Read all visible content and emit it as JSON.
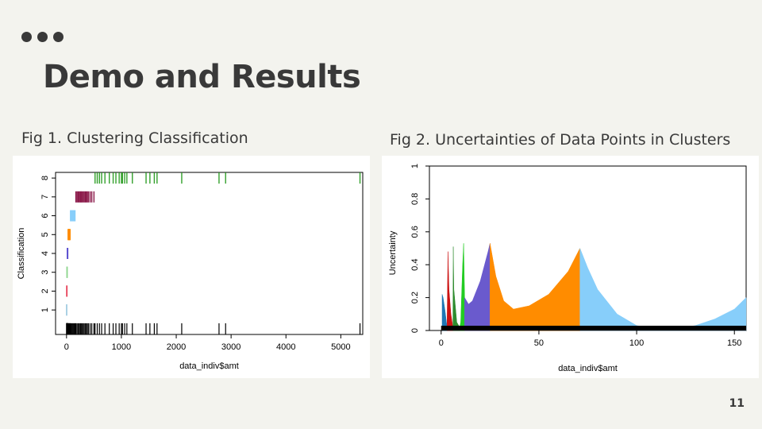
{
  "slide": {
    "title": "Demo and Results",
    "fig1_caption": "Fig 1. Clustering Classification",
    "fig2_caption": "Fig 2. Uncertainties of Data Points in Clusters",
    "page_number": "11"
  },
  "chart_data": [
    {
      "type": "scatter",
      "xlabel": "data_indiv$amt",
      "ylabel": "Classification",
      "xlim": [
        -200,
        5400
      ],
      "ylim": [
        -0.3,
        8.3
      ],
      "x_ticks": [
        0,
        1000,
        2000,
        3000,
        4000,
        5000
      ],
      "y_ticks": [
        1,
        2,
        3,
        4,
        5,
        6,
        7,
        8
      ],
      "mark": "vertical tick per observation",
      "all_data_row_y": 0,
      "series": [
        {
          "class": 1,
          "color": "#a6cee3",
          "x": [
            1,
            2,
            3,
            4
          ]
        },
        {
          "class": 2,
          "color": "#e5304a",
          "x": [
            4,
            5,
            6,
            7
          ]
        },
        {
          "class": 3,
          "color": "#8fd68f",
          "x": [
            8,
            9,
            10,
            12
          ]
        },
        {
          "class": 4,
          "color": "#5b4fcf",
          "x": [
            14,
            17,
            20,
            23
          ]
        },
        {
          "class": 5,
          "color": "#ff8c00",
          "x": [
            28,
            35,
            42,
            50,
            58,
            65
          ]
        },
        {
          "class": 6,
          "color": "#87cefa",
          "x": [
            72,
            85,
            100,
            115,
            130,
            145,
            155
          ]
        },
        {
          "class": 7,
          "color": "#8b1a4a",
          "x": [
            170,
            190,
            210,
            230,
            250,
            265,
            280,
            300,
            320,
            340,
            360,
            380,
            400,
            430,
            460,
            500
          ]
        },
        {
          "class": 8,
          "color": "#33a02c",
          "x": [
            520,
            560,
            600,
            640,
            700,
            780,
            850,
            900,
            960,
            1000,
            1020,
            1060,
            1100,
            1200,
            1450,
            1520,
            1600,
            1650,
            2100,
            2780,
            2900,
            5350
          ]
        }
      ]
    },
    {
      "type": "area",
      "xlabel": "data_indiv$amt",
      "ylabel": "Uncertainty",
      "xlim": [
        -6,
        156
      ],
      "ylim": [
        0,
        1.0
      ],
      "x_ticks": [
        0,
        50,
        100,
        150
      ],
      "y_ticks": [
        0.0,
        0.2,
        0.4,
        0.6,
        0.8,
        1.0
      ],
      "series": [
        {
          "color": "#1f77b4",
          "x": [
            0.5,
            1,
            2,
            3
          ],
          "y": [
            0.22,
            0.2,
            0.12,
            0.02
          ]
        },
        {
          "color": "#cc1111",
          "x": [
            3,
            3.5,
            4,
            5,
            6
          ],
          "y": [
            0.02,
            0.48,
            0.25,
            0.1,
            0.02
          ]
        },
        {
          "color": "#2e8b2e",
          "x": [
            6,
            6.2,
            6.5,
            8,
            9.5
          ],
          "y": [
            0.02,
            0.51,
            0.25,
            0.05,
            0.02
          ]
        },
        {
          "color": "#22cc22",
          "x": [
            9.5,
            10,
            11,
            11.5,
            12
          ],
          "y": [
            0.02,
            0.05,
            0.4,
            0.53,
            0.2
          ]
        },
        {
          "color": "#6a5acd",
          "x": [
            12,
            14,
            16,
            20,
            24,
            25
          ],
          "y": [
            0.2,
            0.16,
            0.18,
            0.3,
            0.48,
            0.53
          ]
        },
        {
          "color": "#ff8c00",
          "x": [
            25,
            28,
            32,
            37,
            45,
            55,
            65,
            71
          ],
          "y": [
            0.53,
            0.33,
            0.18,
            0.13,
            0.15,
            0.22,
            0.36,
            0.5
          ]
        },
        {
          "color": "#87cefa",
          "x": [
            71,
            75,
            80,
            90,
            100,
            110,
            120,
            130,
            140,
            150,
            156
          ],
          "y": [
            0.5,
            0.38,
            0.25,
            0.1,
            0.03,
            0.01,
            0.01,
            0.03,
            0.07,
            0.13,
            0.2
          ]
        }
      ]
    }
  ]
}
